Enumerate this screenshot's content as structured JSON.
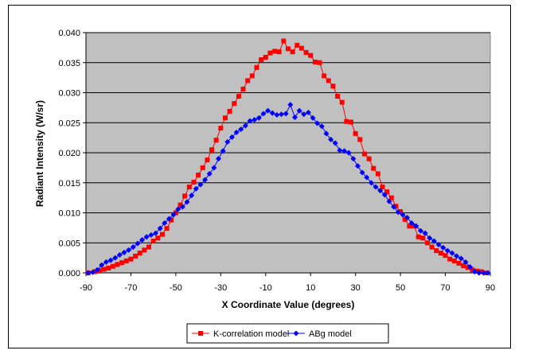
{
  "chart_data": {
    "type": "scatter",
    "xlabel": "X Coordinate Value (degrees)",
    "ylabel": "Radiant Intensity (W/sr)",
    "xlim": [
      -90,
      90
    ],
    "ylim": [
      0,
      0.04
    ],
    "x_ticks": [
      -90,
      -70,
      -50,
      -30,
      -10,
      10,
      30,
      50,
      70,
      90
    ],
    "y_ticks": [
      0.0,
      0.005,
      0.01,
      0.015,
      0.02,
      0.025,
      0.03,
      0.035,
      0.04
    ],
    "y_tick_labels": [
      "0.000",
      "0.005",
      "0.010",
      "0.015",
      "0.020",
      "0.025",
      "0.030",
      "0.035",
      "0.040"
    ],
    "grid": "horizontal",
    "plot_background": "#c0c0c0",
    "legend_position": "bottom",
    "series": [
      {
        "name": "K-correlation model",
        "color": "#ff0000",
        "marker": "square",
        "x": [
          -89,
          -86,
          -84,
          -82,
          -80,
          -78,
          -76,
          -74,
          -72,
          -70,
          -68,
          -66,
          -64,
          -62,
          -60,
          -58,
          -56,
          -54,
          -52,
          -50,
          -48,
          -46,
          -44,
          -42,
          -40,
          -38,
          -36,
          -34,
          -32,
          -30,
          -28,
          -26,
          -24,
          -22,
          -20,
          -18,
          -16,
          -14,
          -12,
          -10,
          -8,
          -6,
          -4,
          -2,
          0,
          2,
          4,
          6,
          8,
          10,
          12,
          14,
          16,
          18,
          20,
          22,
          24,
          26,
          28,
          30,
          32,
          34,
          36,
          38,
          40,
          42,
          44,
          46,
          48,
          50,
          52,
          54,
          56,
          58,
          60,
          62,
          64,
          66,
          68,
          70,
          72,
          74,
          76,
          78,
          80,
          82,
          84,
          86,
          88
        ],
        "y": [
          0.0,
          0.0002,
          0.0004,
          0.0006,
          0.0008,
          0.0011,
          0.0014,
          0.0017,
          0.002,
          0.0023,
          0.0028,
          0.0033,
          0.0038,
          0.0043,
          0.0053,
          0.0058,
          0.0064,
          0.0074,
          0.0088,
          0.01,
          0.0113,
          0.0128,
          0.0143,
          0.0151,
          0.0163,
          0.0175,
          0.0188,
          0.0205,
          0.0221,
          0.0241,
          0.0258,
          0.0269,
          0.0282,
          0.0294,
          0.0306,
          0.032,
          0.0328,
          0.0342,
          0.0355,
          0.0359,
          0.0366,
          0.0369,
          0.0368,
          0.0386,
          0.0373,
          0.0368,
          0.0379,
          0.0374,
          0.0367,
          0.0362,
          0.0351,
          0.035,
          0.0328,
          0.032,
          0.0311,
          0.0294,
          0.0284,
          0.0252,
          0.0251,
          0.0232,
          0.0222,
          0.0198,
          0.019,
          0.0174,
          0.0165,
          0.0143,
          0.0135,
          0.0125,
          0.0111,
          0.0102,
          0.0089,
          0.0078,
          0.0078,
          0.006,
          0.0058,
          0.005,
          0.0043,
          0.0037,
          0.0033,
          0.0029,
          0.0023,
          0.002,
          0.0016,
          0.0012,
          0.0009,
          0.0005,
          0.0003,
          0.0002,
          0.0
        ]
      },
      {
        "name": "ABg model",
        "color": "#0000ff",
        "marker": "diamond",
        "x": [
          -89,
          -87,
          -85,
          -83,
          -81,
          -79,
          -77,
          -75,
          -73,
          -71,
          -69,
          -67,
          -65,
          -63,
          -61,
          -59,
          -57,
          -55,
          -53,
          -51,
          -49,
          -47,
          -45,
          -43,
          -41,
          -39,
          -37,
          -35,
          -33,
          -31,
          -29,
          -27,
          -25,
          -23,
          -21,
          -19,
          -17,
          -15,
          -13,
          -11,
          -9,
          -7,
          -5,
          -3,
          -1,
          1,
          3,
          5,
          7,
          9,
          11,
          13,
          15,
          17,
          19,
          21,
          23,
          25,
          27,
          29,
          31,
          33,
          35,
          37,
          39,
          41,
          43,
          45,
          47,
          49,
          51,
          53,
          55,
          57,
          59,
          61,
          63,
          65,
          67,
          69,
          71,
          73,
          75,
          77,
          79,
          81,
          83,
          85,
          87,
          89
        ],
        "y": [
          0.0,
          0.0001,
          0.0005,
          0.0013,
          0.0018,
          0.0021,
          0.0025,
          0.003,
          0.0034,
          0.0038,
          0.0043,
          0.0049,
          0.0055,
          0.006,
          0.0063,
          0.0066,
          0.0074,
          0.0083,
          0.009,
          0.0097,
          0.0106,
          0.011,
          0.0118,
          0.0129,
          0.014,
          0.0147,
          0.0155,
          0.0165,
          0.0175,
          0.019,
          0.0203,
          0.0218,
          0.0226,
          0.0234,
          0.0239,
          0.0245,
          0.0253,
          0.0255,
          0.0258,
          0.0265,
          0.027,
          0.0266,
          0.0263,
          0.0264,
          0.0265,
          0.028,
          0.0259,
          0.027,
          0.0264,
          0.0267,
          0.0258,
          0.0249,
          0.0244,
          0.0232,
          0.0222,
          0.0216,
          0.0204,
          0.0203,
          0.02,
          0.019,
          0.0178,
          0.0167,
          0.0159,
          0.015,
          0.0143,
          0.0137,
          0.013,
          0.0119,
          0.011,
          0.0101,
          0.0097,
          0.0092,
          0.0083,
          0.0078,
          0.007,
          0.0066,
          0.0058,
          0.0053,
          0.0047,
          0.0042,
          0.0037,
          0.0033,
          0.0028,
          0.0024,
          0.0018,
          0.001,
          0.0002,
          0.0,
          0.0,
          0.0
        ]
      }
    ]
  }
}
